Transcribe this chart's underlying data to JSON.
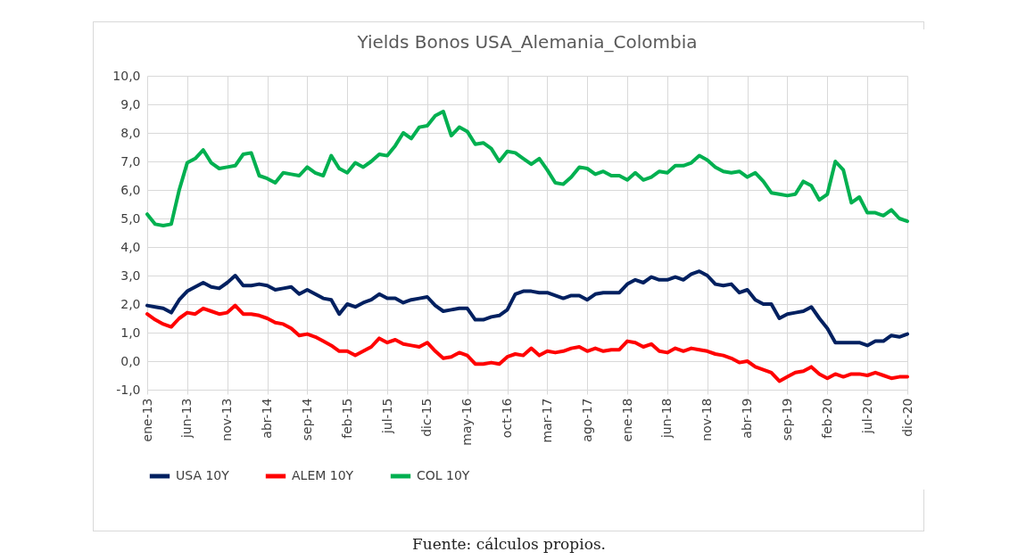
{
  "chart_data": {
    "type": "line",
    "title": "Yields Bonos USA_Alemania_Colombia",
    "categories": [
      "ene-13",
      null,
      null,
      null,
      null,
      "jun-13",
      null,
      null,
      null,
      null,
      "nov-13",
      null,
      null,
      null,
      null,
      "abr-14",
      null,
      null,
      null,
      null,
      "sep-14",
      null,
      null,
      null,
      null,
      "feb-15",
      null,
      null,
      null,
      null,
      "jul-15",
      null,
      null,
      null,
      null,
      "dic-15",
      null,
      null,
      null,
      null,
      "may-16",
      null,
      null,
      null,
      null,
      "oct-16",
      null,
      null,
      null,
      null,
      "mar-17",
      null,
      null,
      null,
      null,
      "ago-17",
      null,
      null,
      null,
      null,
      "ene-18",
      null,
      null,
      null,
      null,
      "jun-18",
      null,
      null,
      null,
      null,
      "nov-18",
      null,
      null,
      null,
      null,
      "abr-19",
      null,
      null,
      null,
      null,
      "sep-19",
      null,
      null,
      null,
      null,
      "feb-20",
      null,
      null,
      null,
      null,
      "jul-20",
      null,
      null,
      null,
      null,
      "dic-20"
    ],
    "series": [
      {
        "name": "USA 10Y",
        "color": "#002060",
        "values": [
          1.95,
          1.9,
          1.85,
          1.7,
          2.15,
          2.45,
          2.6,
          2.75,
          2.6,
          2.55,
          2.75,
          3.0,
          2.65,
          2.65,
          2.7,
          2.65,
          2.5,
          2.55,
          2.6,
          2.35,
          2.5,
          2.35,
          2.2,
          2.15,
          1.65,
          2.0,
          1.9,
          2.05,
          2.15,
          2.35,
          2.2,
          2.2,
          2.05,
          2.15,
          2.2,
          2.25,
          1.95,
          1.75,
          1.8,
          1.85,
          1.85,
          1.45,
          1.45,
          1.55,
          1.6,
          1.8,
          2.35,
          2.45,
          2.45,
          2.4,
          2.4,
          2.3,
          2.2,
          2.3,
          2.3,
          2.15,
          2.35,
          2.4,
          2.4,
          2.4,
          2.7,
          2.85,
          2.75,
          2.95,
          2.85,
          2.85,
          2.95,
          2.85,
          3.05,
          3.15,
          3.0,
          2.7,
          2.65,
          2.7,
          2.4,
          2.5,
          2.15,
          2.0,
          2.0,
          1.5,
          1.65,
          1.7,
          1.75,
          1.9,
          1.5,
          1.15,
          0.65,
          0.65,
          0.65,
          0.65,
          0.55,
          0.7,
          0.7,
          0.9,
          0.85,
          0.95
        ]
      },
      {
        "name": "ALEM 10Y",
        "color": "#ff0000",
        "values": [
          1.65,
          1.45,
          1.3,
          1.2,
          1.5,
          1.7,
          1.65,
          1.85,
          1.75,
          1.65,
          1.7,
          1.95,
          1.65,
          1.65,
          1.6,
          1.5,
          1.35,
          1.3,
          1.15,
          0.9,
          0.95,
          0.85,
          0.7,
          0.55,
          0.35,
          0.35,
          0.2,
          0.35,
          0.5,
          0.8,
          0.65,
          0.75,
          0.6,
          0.55,
          0.5,
          0.65,
          0.35,
          0.1,
          0.15,
          0.3,
          0.2,
          -0.1,
          -0.1,
          -0.05,
          -0.1,
          0.15,
          0.25,
          0.2,
          0.45,
          0.2,
          0.35,
          0.3,
          0.35,
          0.45,
          0.5,
          0.35,
          0.45,
          0.35,
          0.4,
          0.4,
          0.7,
          0.65,
          0.5,
          0.6,
          0.35,
          0.3,
          0.45,
          0.35,
          0.45,
          0.4,
          0.35,
          0.25,
          0.2,
          0.1,
          -0.05,
          0.0,
          -0.2,
          -0.3,
          -0.4,
          -0.7,
          -0.55,
          -0.4,
          -0.35,
          -0.2,
          -0.45,
          -0.6,
          -0.45,
          -0.55,
          -0.45,
          -0.45,
          -0.5,
          -0.4,
          -0.5,
          -0.6,
          -0.55,
          -0.55
        ]
      },
      {
        "name": "COL 10Y",
        "color": "#00b050",
        "values": [
          5.15,
          4.8,
          4.75,
          4.8,
          6.0,
          6.95,
          7.1,
          7.4,
          6.95,
          6.75,
          6.8,
          6.85,
          7.25,
          7.3,
          6.5,
          6.4,
          6.25,
          6.6,
          6.55,
          6.5,
          6.8,
          6.6,
          6.5,
          7.2,
          6.75,
          6.6,
          6.95,
          6.8,
          7.0,
          7.25,
          7.2,
          7.55,
          8.0,
          7.8,
          8.2,
          8.25,
          8.6,
          8.75,
          7.9,
          8.2,
          8.05,
          7.6,
          7.65,
          7.45,
          7.0,
          7.35,
          7.3,
          7.1,
          6.9,
          7.1,
          6.7,
          6.25,
          6.2,
          6.45,
          6.8,
          6.75,
          6.55,
          6.65,
          6.5,
          6.5,
          6.35,
          6.6,
          6.35,
          6.45,
          6.65,
          6.6,
          6.85,
          6.85,
          6.95,
          7.2,
          7.05,
          6.8,
          6.65,
          6.6,
          6.65,
          6.45,
          6.6,
          6.3,
          5.9,
          5.85,
          5.8,
          5.85,
          6.3,
          6.15,
          5.65,
          5.85,
          7.0,
          6.7,
          5.55,
          5.75,
          5.2,
          5.2,
          5.1,
          5.3,
          5.0,
          4.9
        ]
      }
    ],
    "ylim": [
      -1,
      10
    ],
    "yticks": [
      {
        "value": -1,
        "label": "-1,0"
      },
      {
        "value": 0,
        "label": "0,0"
      },
      {
        "value": 1,
        "label": "1,0"
      },
      {
        "value": 2,
        "label": "2,0"
      },
      {
        "value": 3,
        "label": "3,0"
      },
      {
        "value": 4,
        "label": "4,0"
      },
      {
        "value": 5,
        "label": "5,0"
      },
      {
        "value": 6,
        "label": "6,0"
      },
      {
        "value": 7,
        "label": "7,0"
      },
      {
        "value": 8,
        "label": "8,0"
      },
      {
        "value": 9,
        "label": "9,0"
      },
      {
        "value": 10,
        "label": "10,0"
      }
    ],
    "grid": true,
    "legend": "bottom",
    "line_style": "solid",
    "annotations": [
      "Fuente: cálculos propios."
    ]
  }
}
